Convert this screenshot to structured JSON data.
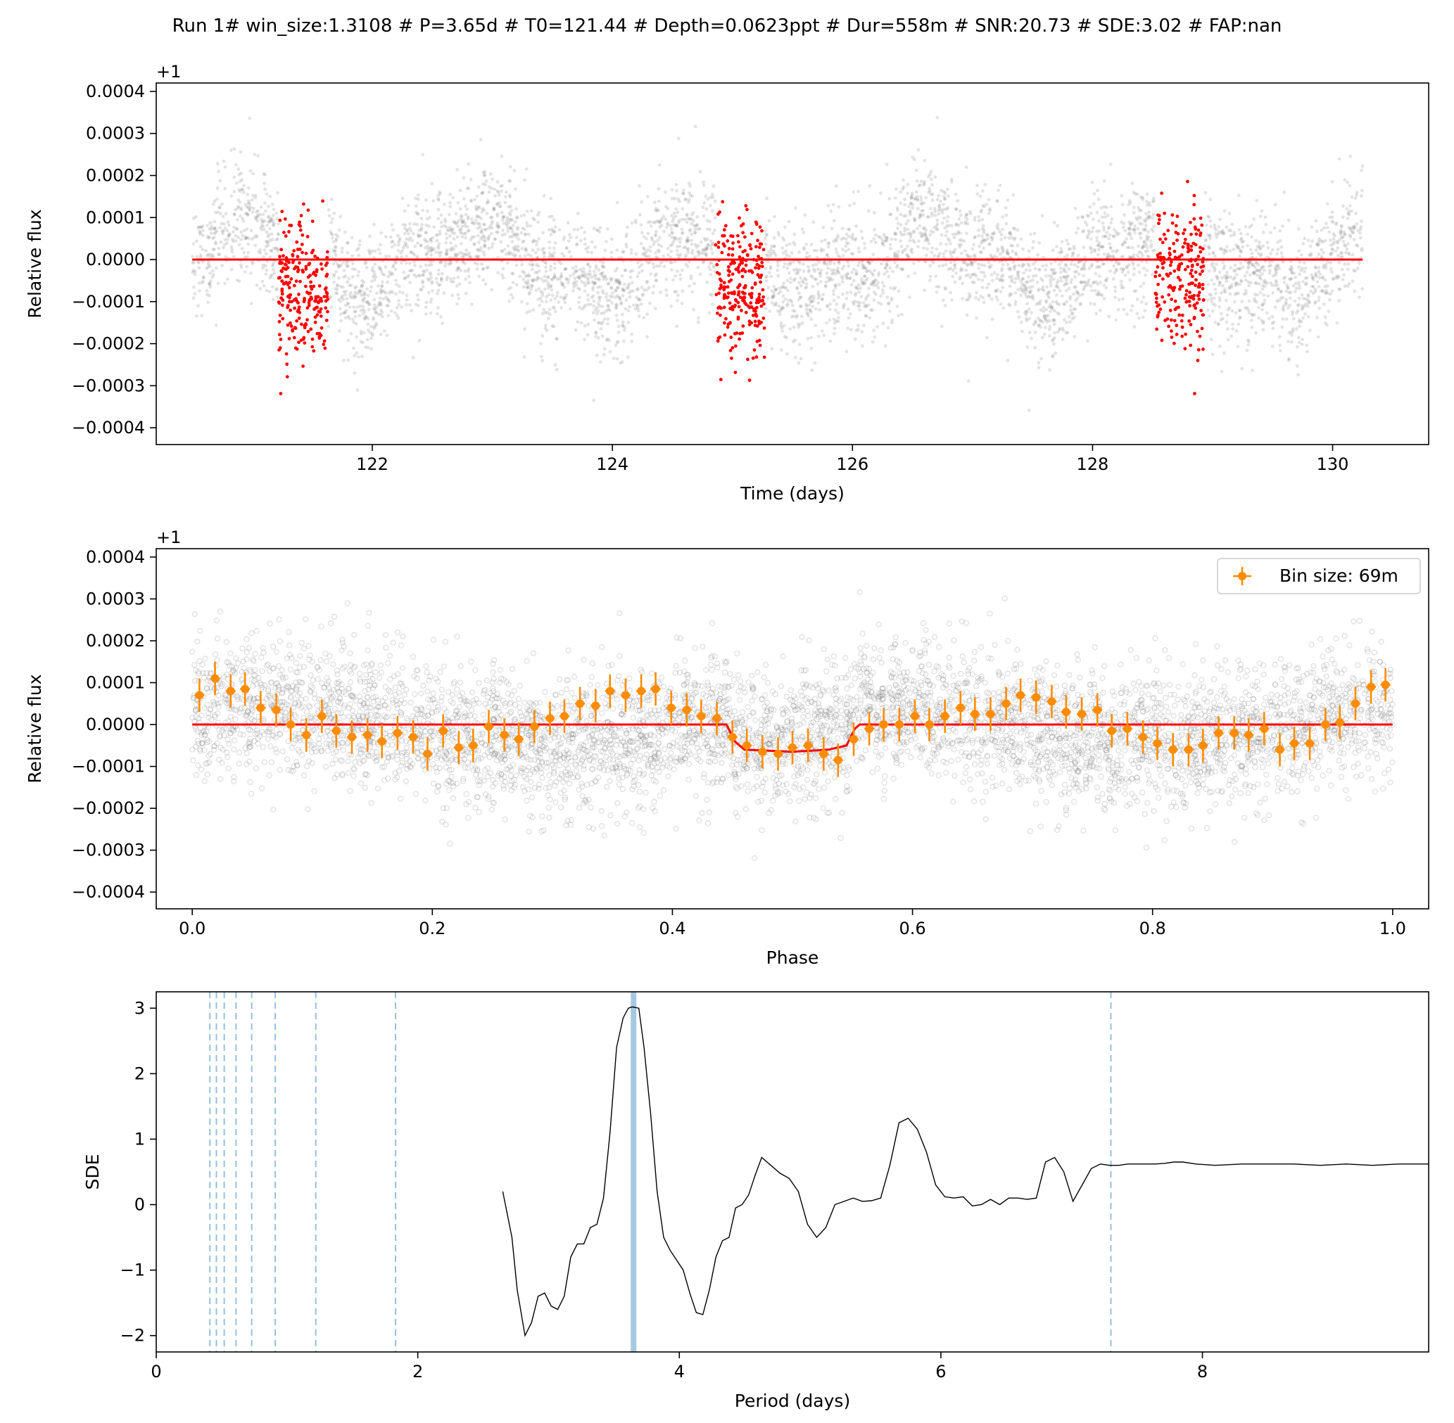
{
  "figure": {
    "title": "Run 1# win_size:1.3108 # P=3.65d # T0=121.44 # Depth=0.0623ppt # Dur=558m # SNR:20.73 # SDE:3.02 # FAP:nan"
  },
  "colors": {
    "background": "#ffffff",
    "raw_points": "#808080",
    "in_transit_points": "#ff0000",
    "model": "#ff0000",
    "binned": "#ff8c00",
    "periodogram": "#000000",
    "harmonic_lines": "#7bafd4",
    "best_period": "#a6c8e0"
  },
  "chart_data": [
    {
      "type": "scatter",
      "panel": "lightcurve",
      "xlabel": "Time (days)",
      "ylabel": "Relative flux",
      "offset_label": "+1",
      "xlim": [
        120.2,
        130.8
      ],
      "ylim": [
        -0.00044,
        0.00042
      ],
      "xticks": [
        122,
        124,
        126,
        128,
        130
      ],
      "xtick_labels": [
        "122",
        "124",
        "126",
        "128",
        "130"
      ],
      "yticks": [
        -0.0004,
        -0.0003,
        -0.0002,
        -0.0001,
        0.0,
        0.0001,
        0.0002,
        0.0003,
        0.0004
      ],
      "ytick_labels": [
        "−0.0004",
        "−0.0003",
        "−0.0002",
        "−0.0001",
        "0.0000",
        "0.0001",
        "0.0002",
        "0.0003",
        "0.0004"
      ],
      "time_span": [
        120.5,
        130.25
      ],
      "noise_sigma": 9e-05,
      "in_transit_windows": [
        [
          121.22,
          121.63
        ],
        [
          124.86,
          125.27
        ],
        [
          128.52,
          128.93
        ]
      ],
      "in_transit_depth": -8e-05,
      "model_line": {
        "x": [
          120.5,
          130.25
        ],
        "y": [
          0.0,
          0.0
        ]
      }
    },
    {
      "type": "scatter",
      "panel": "phase",
      "xlabel": "Phase",
      "ylabel": "Relative flux",
      "offset_label": "+1",
      "xlim": [
        -0.03,
        1.03
      ],
      "ylim": [
        -0.00044,
        0.00042
      ],
      "xticks": [
        0.0,
        0.2,
        0.4,
        0.6,
        0.8,
        1.0
      ],
      "xtick_labels": [
        "0.0",
        "0.2",
        "0.4",
        "0.6",
        "0.8",
        "1.0"
      ],
      "yticks": [
        -0.0004,
        -0.0003,
        -0.0002,
        -0.0001,
        0.0,
        0.0001,
        0.0002,
        0.0003,
        0.0004
      ],
      "ytick_labels": [
        "−0.0004",
        "−0.0003",
        "−0.0002",
        "−0.0001",
        "0.0000",
        "0.0001",
        "0.0002",
        "0.0003",
        "0.0004"
      ],
      "legend": {
        "label": "Bin size: 69m",
        "placement": "upper right"
      },
      "model": {
        "x": [
          0.0,
          0.445,
          0.452,
          0.46,
          0.5,
          0.53,
          0.545,
          0.552,
          0.556,
          1.0
        ],
        "y": [
          0.0,
          0.0,
          -4e-05,
          -6e-05,
          -6.5e-05,
          -6e-05,
          -5e-05,
          -1e-05,
          0.0,
          0.0
        ]
      },
      "bins": {
        "x": [
          0.006,
          0.019,
          0.032,
          0.044,
          0.057,
          0.07,
          0.082,
          0.095,
          0.108,
          0.12,
          0.133,
          0.146,
          0.158,
          0.171,
          0.184,
          0.196,
          0.209,
          0.222,
          0.234,
          0.247,
          0.26,
          0.272,
          0.285,
          0.298,
          0.31,
          0.323,
          0.336,
          0.348,
          0.361,
          0.374,
          0.386,
          0.399,
          0.412,
          0.424,
          0.437,
          0.45,
          0.462,
          0.475,
          0.488,
          0.5,
          0.513,
          0.526,
          0.538,
          0.551,
          0.564,
          0.576,
          0.589,
          0.602,
          0.614,
          0.627,
          0.64,
          0.652,
          0.665,
          0.678,
          0.69,
          0.703,
          0.716,
          0.728,
          0.741,
          0.754,
          0.766,
          0.779,
          0.792,
          0.804,
          0.817,
          0.83,
          0.842,
          0.855,
          0.868,
          0.88,
          0.893,
          0.906,
          0.918,
          0.931,
          0.944,
          0.956,
          0.969,
          0.982,
          0.994
        ],
        "y": [
          7e-05,
          0.00011,
          8e-05,
          8.5e-05,
          4e-05,
          3.5e-05,
          0.0,
          -2.5e-05,
          2e-05,
          -1.5e-05,
          -3e-05,
          -2.5e-05,
          -4e-05,
          -2e-05,
          -3e-05,
          -7e-05,
          -1.5e-05,
          -5.5e-05,
          -5e-05,
          -5e-06,
          -2.5e-05,
          -3.5e-05,
          -5e-06,
          1.5e-05,
          2e-05,
          5e-05,
          4.5e-05,
          8e-05,
          7e-05,
          8e-05,
          8.5e-05,
          4e-05,
          3.5e-05,
          2e-05,
          1.5e-05,
          -3e-05,
          -5e-05,
          -6.5e-05,
          -7e-05,
          -5.5e-05,
          -5e-05,
          -7e-05,
          -8.5e-05,
          -3.5e-05,
          -1e-05,
          0.0,
          0.0,
          2e-05,
          0.0,
          2e-05,
          4e-05,
          2.5e-05,
          2.5e-05,
          5e-05,
          7e-05,
          6.5e-05,
          5.5e-05,
          3e-05,
          2.5e-05,
          3.5e-05,
          -1.5e-05,
          -1e-05,
          -3e-05,
          -4.5e-05,
          -6e-05,
          -6e-05,
          -5e-05,
          -2e-05,
          -2e-05,
          -2.5e-05,
          -1e-05,
          -6e-05,
          -4.5e-05,
          -4.5e-05,
          0.0,
          5e-06,
          5e-05,
          9e-05,
          9.5e-05
        ],
        "err": 4e-05
      }
    },
    {
      "type": "line",
      "panel": "periodogram",
      "xlabel": "Period (days)",
      "ylabel": "SDE",
      "xlim": [
        0,
        9.73
      ],
      "ylim": [
        -2.25,
        3.25
      ],
      "xticks": [
        0,
        2,
        4,
        6,
        8
      ],
      "xtick_labels": [
        "0",
        "2",
        "4",
        "6",
        "8"
      ],
      "yticks": [
        -2,
        -1,
        0,
        1,
        2,
        3
      ],
      "ytick_labels": [
        "−2",
        "−1",
        "0",
        "1",
        "2",
        "3"
      ],
      "best_period": 3.65,
      "harmonics": [
        0.41,
        0.46,
        0.52,
        0.61,
        0.73,
        0.91,
        1.22,
        1.83,
        7.3
      ],
      "x": [
        2.65,
        2.72,
        2.76,
        2.82,
        2.87,
        2.92,
        2.97,
        3.02,
        3.07,
        3.12,
        3.17,
        3.22,
        3.27,
        3.32,
        3.37,
        3.42,
        3.47,
        3.52,
        3.57,
        3.61,
        3.64,
        3.69,
        3.73,
        3.78,
        3.83,
        3.88,
        3.93,
        3.98,
        4.03,
        4.08,
        4.13,
        4.18,
        4.23,
        4.28,
        4.33,
        4.38,
        4.43,
        4.48,
        4.53,
        4.58,
        4.63,
        4.7,
        4.77,
        4.84,
        4.91,
        4.98,
        5.05,
        5.12,
        5.19,
        5.26,
        5.33,
        5.4,
        5.47,
        5.54,
        5.61,
        5.68,
        5.75,
        5.82,
        5.89,
        5.96,
        6.03,
        6.1,
        6.17,
        6.24,
        6.31,
        6.38,
        6.45,
        6.52,
        6.59,
        6.66,
        6.73,
        6.8,
        6.87,
        6.94,
        7.01,
        7.08,
        7.15,
        7.22,
        7.29,
        7.36,
        7.43,
        7.5,
        7.57,
        7.64,
        7.71,
        7.78,
        7.85,
        7.95,
        8.1,
        8.3,
        8.5,
        8.7,
        8.9,
        9.1,
        9.3,
        9.5,
        9.73
      ],
      "y": [
        0.2,
        -0.5,
        -1.3,
        -2.0,
        -1.8,
        -1.4,
        -1.35,
        -1.55,
        -1.6,
        -1.4,
        -0.8,
        -0.6,
        -0.6,
        -0.35,
        -0.3,
        0.1,
        1.1,
        2.4,
        2.85,
        3.0,
        3.02,
        3.0,
        2.4,
        1.4,
        0.2,
        -0.5,
        -0.7,
        -0.85,
        -1.0,
        -1.35,
        -1.65,
        -1.68,
        -1.3,
        -0.8,
        -0.55,
        -0.5,
        -0.05,
        0.0,
        0.15,
        0.45,
        0.72,
        0.6,
        0.48,
        0.4,
        0.2,
        -0.3,
        -0.5,
        -0.35,
        0.0,
        0.05,
        0.1,
        0.05,
        0.06,
        0.1,
        0.6,
        1.25,
        1.32,
        1.15,
        0.8,
        0.3,
        0.12,
        0.1,
        0.12,
        -0.02,
        0.0,
        0.08,
        0.0,
        0.1,
        0.1,
        0.08,
        0.1,
        0.65,
        0.72,
        0.5,
        0.05,
        0.3,
        0.55,
        0.62,
        0.6,
        0.6,
        0.62,
        0.62,
        0.62,
        0.62,
        0.63,
        0.65,
        0.65,
        0.62,
        0.6,
        0.62,
        0.62,
        0.62,
        0.6,
        0.62,
        0.6,
        0.62,
        0.62
      ]
    }
  ]
}
